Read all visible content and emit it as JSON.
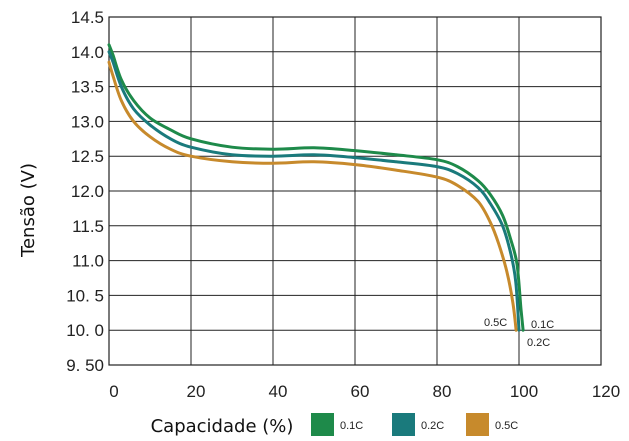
{
  "chart_data": {
    "type": "line",
    "title": "",
    "xlabel": "Capacidade (%)",
    "ylabel": "Tensão (V)",
    "xlim": [
      0,
      120
    ],
    "ylim": [
      9.5,
      14.5
    ],
    "grid": true,
    "legend_position": "bottom",
    "x_ticks": [
      {
        "value": 0,
        "label": "0"
      },
      {
        "value": 20,
        "label": "20"
      },
      {
        "value": 40,
        "label": "40"
      },
      {
        "value": 60,
        "label": "60"
      },
      {
        "value": 80,
        "label": "80"
      },
      {
        "value": 100,
        "label": "100"
      },
      {
        "value": 120,
        "label": "120"
      }
    ],
    "y_ticks": [
      {
        "value": 14.5,
        "label": "14.5"
      },
      {
        "value": 14.0,
        "label": "14.0"
      },
      {
        "value": 13.5,
        "label": "13.5"
      },
      {
        "value": 13.0,
        "label": "13.0"
      },
      {
        "value": 12.5,
        "label": "12.5"
      },
      {
        "value": 12.0,
        "label": "12.0"
      },
      {
        "value": 11.5,
        "label": "11.5"
      },
      {
        "value": 11.0,
        "label": "11.0"
      },
      {
        "value": 10.5,
        "label": "10. 5"
      },
      {
        "value": 10.0,
        "label": "10. 0"
      },
      {
        "value": 9.5,
        "label": "9. 50"
      }
    ],
    "series": [
      {
        "name": "0.1C",
        "color": "#1e8a4a",
        "end_label": "0.1C",
        "x": [
          0,
          1,
          3,
          6,
          10,
          15,
          20,
          30,
          40,
          50,
          60,
          70,
          80,
          85,
          90,
          93,
          96,
          98,
          99.5,
          100.5,
          101
        ],
        "y": [
          14.1,
          13.95,
          13.6,
          13.3,
          13.05,
          12.88,
          12.75,
          12.63,
          12.6,
          12.62,
          12.58,
          12.52,
          12.45,
          12.35,
          12.15,
          11.95,
          11.65,
          11.3,
          10.95,
          10.3,
          10.0
        ]
      },
      {
        "name": "0.2C",
        "color": "#1a7a7c",
        "end_label": "0.2C",
        "x": [
          0,
          1,
          3,
          6,
          10,
          15,
          20,
          30,
          40,
          50,
          60,
          70,
          80,
          85,
          90,
          93,
          96,
          98,
          99.2,
          100
        ],
        "y": [
          14.0,
          13.85,
          13.5,
          13.18,
          12.95,
          12.75,
          12.63,
          12.52,
          12.5,
          12.52,
          12.48,
          12.42,
          12.35,
          12.25,
          12.05,
          11.82,
          11.5,
          11.1,
          10.7,
          10.0
        ]
      },
      {
        "name": "0.5C",
        "color": "#c78a2c",
        "end_label": "0.5C",
        "x": [
          0,
          1,
          3,
          6,
          10,
          15,
          20,
          30,
          40,
          50,
          60,
          70,
          80,
          85,
          90,
          93,
          95,
          97,
          98.5,
          99.3
        ],
        "y": [
          13.85,
          13.65,
          13.3,
          13.0,
          12.78,
          12.6,
          12.5,
          12.42,
          12.4,
          12.42,
          12.38,
          12.3,
          12.2,
          12.08,
          11.85,
          11.55,
          11.25,
          10.85,
          10.4,
          10.0
        ]
      }
    ]
  }
}
